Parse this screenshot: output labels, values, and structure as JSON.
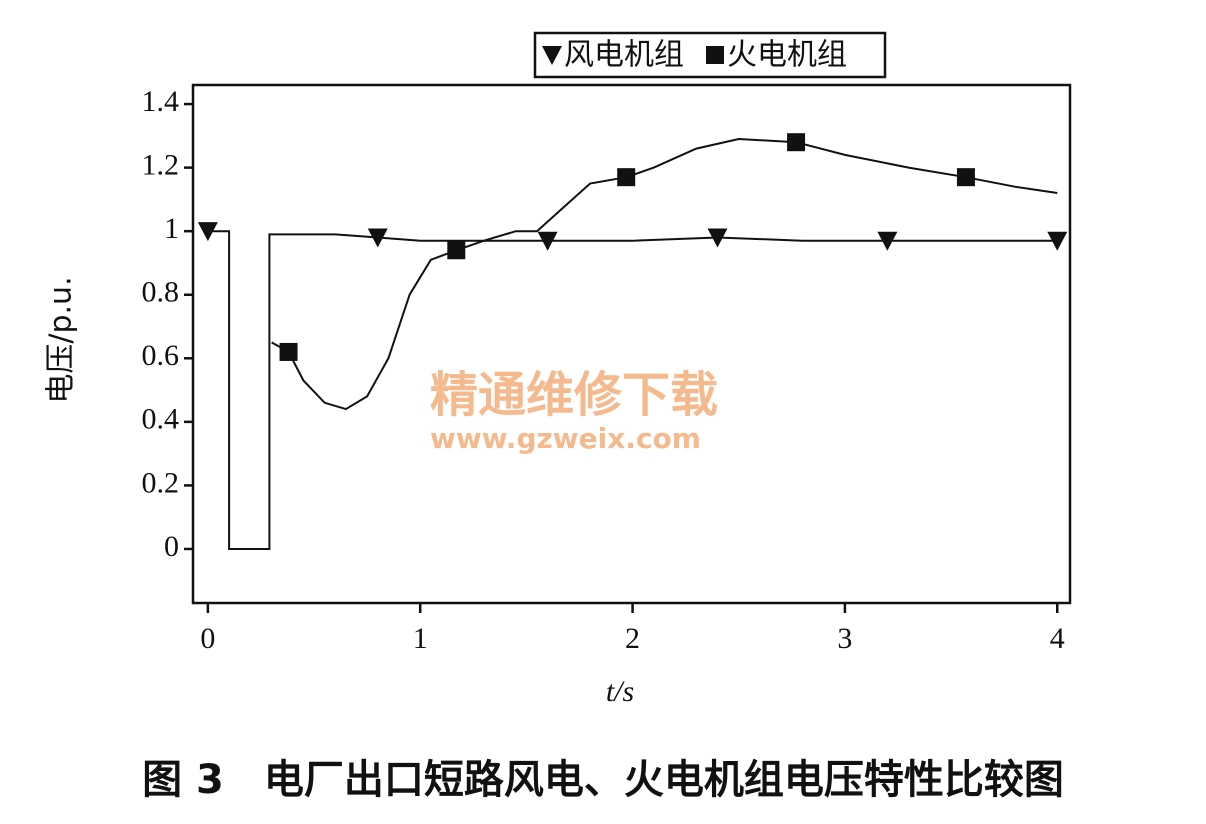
{
  "chart_data": {
    "type": "line",
    "caption": "图 3　电厂出口短路风电、火电机组电压特性比较图",
    "xlabel": "t/s",
    "ylabel": "电压/p.u.",
    "annotations": [
      "精通维修下载",
      "www.gzweix.com"
    ],
    "xlim": [
      -0.07,
      4.06
    ],
    "ylim": [
      -0.17,
      1.46
    ],
    "xticks": [
      0,
      1,
      2,
      3,
      4
    ],
    "yticks": [
      0,
      0.2,
      0.4,
      0.6,
      0.8,
      1,
      1.2,
      1.4
    ],
    "series": [
      {
        "name": "风电机组",
        "color": "#111111",
        "marker": "triangle",
        "x": [
          0,
          0.1,
          0.1,
          0.29,
          0.29,
          0.6,
          0.8,
          1.0,
          1.2,
          1.6,
          2.0,
          2.4,
          2.8,
          3.2,
          3.6,
          4.0
        ],
        "values": [
          1,
          1,
          0,
          0,
          0.99,
          0.99,
          0.98,
          0.97,
          0.97,
          0.97,
          0.97,
          0.98,
          0.97,
          0.97,
          0.97,
          0.97
        ],
        "markers": [
          0,
          6,
          9,
          11,
          13,
          15
        ]
      },
      {
        "name": "火电机组",
        "color": "#111111",
        "marker": "square",
        "x": [
          0.3,
          0.38,
          0.45,
          0.55,
          0.65,
          0.75,
          0.85,
          0.95,
          1.05,
          1.17,
          1.3,
          1.45,
          1.55,
          1.65,
          1.8,
          1.97,
          2.1,
          2.3,
          2.5,
          2.77,
          3.0,
          3.3,
          3.57,
          3.8,
          4.0
        ],
        "values": [
          0.65,
          0.62,
          0.53,
          0.46,
          0.44,
          0.48,
          0.6,
          0.8,
          0.91,
          0.94,
          0.97,
          1.0,
          1.0,
          1.06,
          1.15,
          1.17,
          1.2,
          1.26,
          1.29,
          1.28,
          1.24,
          1.2,
          1.17,
          1.14,
          1.12
        ],
        "markers": [
          1,
          9,
          15,
          19,
          22
        ]
      }
    ]
  }
}
